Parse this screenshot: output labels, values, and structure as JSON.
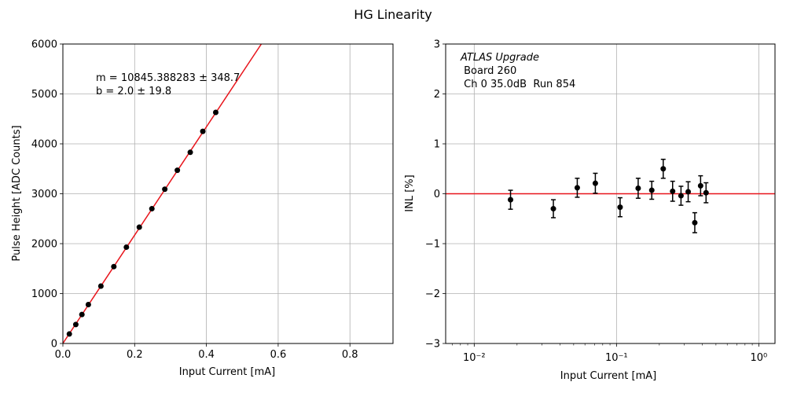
{
  "figure": {
    "title": "HG Linearity"
  },
  "colors": {
    "fit_line": "#e8141b",
    "points": "#000000",
    "grid": "#b0b0b0"
  },
  "chart_data": [
    {
      "type": "scatter",
      "xlabel": "Input Current [mA]",
      "ylabel": "Pulse Height [ADC Counts]",
      "xlim": [
        0,
        0.92
      ],
      "ylim": [
        0,
        6000
      ],
      "xticks": [
        0.0,
        0.2,
        0.4,
        0.6,
        0.8
      ],
      "xtick_labels": [
        "0.0",
        "0.2",
        "0.4",
        "0.6",
        "0.8"
      ],
      "yticks": [
        0,
        1000,
        2000,
        3000,
        4000,
        5000,
        6000
      ],
      "ytick_labels": [
        "0",
        "1000",
        "2000",
        "3000",
        "4000",
        "5000",
        "6000"
      ],
      "grid": true,
      "fit": {
        "slope": 10845.388283,
        "intercept": 2.0
      },
      "annotation_lines": [
        "m = 10845.388283 ± 348.7",
        "b = 2.0 ± 19.8"
      ],
      "series": [
        {
          "x": [
            0.018,
            0.036,
            0.053,
            0.071,
            0.106,
            0.142,
            0.177,
            0.213,
            0.248,
            0.284,
            0.319,
            0.355,
            0.39,
            0.426
          ],
          "y": [
            190,
            380,
            580,
            780,
            1150,
            1540,
            1930,
            2330,
            2700,
            3090,
            3470,
            3830,
            4250,
            4630
          ]
        }
      ]
    },
    {
      "type": "scatter",
      "xlabel": "Input Current [mA]",
      "ylabel": "INL [%]",
      "xscale": "log",
      "xlim": [
        0.0063,
        1.3
      ],
      "ylim": [
        -3,
        3
      ],
      "xticks": [
        0.01,
        0.1,
        1
      ],
      "xtick_labels": [
        "10⁻²",
        "10⁻¹",
        "10⁰"
      ],
      "yticks": [
        -3,
        -2,
        -1,
        0,
        1,
        2,
        3
      ],
      "ytick_labels": [
        "−3",
        "−2",
        "−1",
        "0",
        "1",
        "2",
        "3"
      ],
      "grid": true,
      "reference_line": 0,
      "annotation_lines": [
        "ATLAS Upgrade",
        " Board 260",
        " Ch 0 35.0dB  Run 854"
      ],
      "series": [
        {
          "x": [
            0.018,
            0.036,
            0.053,
            0.071,
            0.106,
            0.142,
            0.177,
            0.213,
            0.248,
            0.284,
            0.319,
            0.355,
            0.39,
            0.426
          ],
          "y": [
            -0.12,
            -0.3,
            0.12,
            0.21,
            -0.27,
            0.11,
            0.07,
            0.5,
            0.05,
            -0.04,
            0.04,
            -0.58,
            0.16,
            0.02
          ],
          "err": [
            0.19,
            0.18,
            0.19,
            0.2,
            0.19,
            0.2,
            0.18,
            0.19,
            0.2,
            0.19,
            0.2,
            0.2,
            0.2,
            0.2
          ]
        }
      ]
    }
  ]
}
